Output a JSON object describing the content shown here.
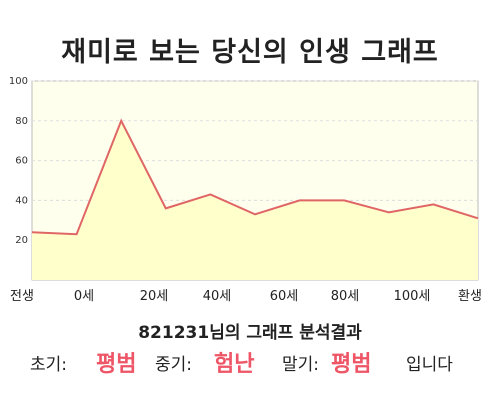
{
  "title": "재미로 보는 당신의 인생 그래프",
  "summary": {
    "number": "821231",
    "text": "님의 그래프 분석결과"
  },
  "verdict": {
    "early_label": "초기:",
    "early_value": "평범",
    "middle_label": "중기:",
    "middle_value": "험난",
    "late_label": "말기:",
    "late_value": "평범",
    "ending": "입니다"
  },
  "colors": {
    "line": "#e06666",
    "fill": "#ffffcc",
    "plot_bg": "#ffffee",
    "highlight": "#ee5566"
  },
  "chart_data": {
    "type": "area",
    "title": "",
    "xlabel": "",
    "ylabel": "",
    "ylim": [
      0,
      100
    ],
    "yticks": [
      20,
      40,
      60,
      80,
      100
    ],
    "x_tick_labels": [
      "전생",
      "0세",
      "20세",
      "40세",
      "60세",
      "80세",
      "100세",
      "환생"
    ],
    "grid": true,
    "series": [
      {
        "values": [
          24,
          23,
          80,
          36,
          43,
          33,
          40,
          40,
          34,
          38,
          31
        ]
      }
    ]
  }
}
